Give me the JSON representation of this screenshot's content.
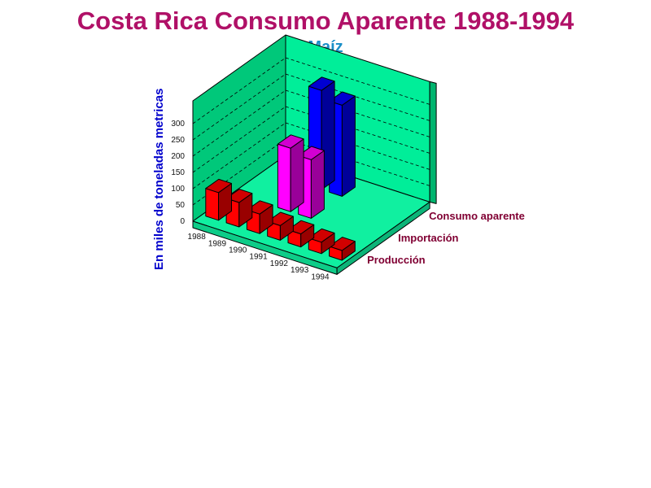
{
  "chart_data": {
    "type": "bar",
    "title": "Costa Rica Consumo Aparente 1988-1994",
    "subtitle": "Maíz",
    "ylabel": "En miles de toneladas metricas",
    "ylim": [
      0,
      300
    ],
    "yticks": [
      "0",
      "50",
      "100",
      "150",
      "200",
      "250",
      "300"
    ],
    "categories": [
      "1988",
      "1989",
      "1990",
      "1991",
      "1992",
      "1993",
      "1994"
    ],
    "series": [
      {
        "name": "Producción",
        "values": [
          85,
          75,
          60,
          45,
          40,
          35,
          30
        ]
      },
      {
        "name": "Importación",
        "values": [
          null,
          null,
          195,
          180,
          null,
          null,
          null
        ]
      },
      {
        "name": "Consumo aparente",
        "values": [
          null,
          null,
          305,
          280,
          null,
          null,
          null
        ]
      }
    ],
    "colors": {
      "background_wall": "#00ee99",
      "floor": "#10f0a0",
      "side_wall": "#00c87a",
      "Producción": "#ff0000",
      "Importación": "#ff00ff",
      "Consumo aparente": "#0000ff"
    }
  }
}
